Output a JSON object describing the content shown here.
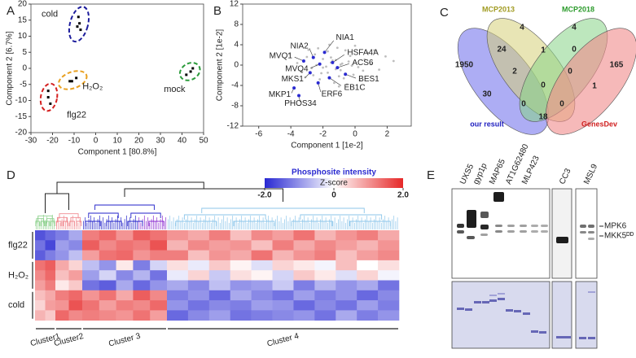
{
  "letters": [
    "A",
    "B",
    "C",
    "D",
    "E"
  ],
  "chart_data": [
    {
      "type": "scatter",
      "xlabel": "Component 1 [80.8%]",
      "ylabel": "Component 2 [6.7%]",
      "xlim": [
        -30,
        50
      ],
      "ylim": [
        -20,
        20
      ],
      "xticks": [
        -30,
        -20,
        -10,
        0,
        10,
        20,
        30,
        40,
        50
      ],
      "yticks": [
        -20,
        -15,
        -10,
        -5,
        0,
        5,
        10,
        15,
        20
      ],
      "marker_color": "#000000",
      "series": [
        {
          "name": "cold",
          "color": "#1c1c9c",
          "x": [
            -8,
            -7.5,
            -8.5,
            -7
          ],
          "values": [
            16,
            14,
            13,
            12
          ]
        },
        {
          "name": "H₂O₂",
          "color": "#e8a020",
          "x": [
            -12,
            -11,
            -9
          ],
          "values": [
            -4,
            -4,
            -3
          ]
        },
        {
          "name": "flg22",
          "color": "#d42020",
          "x": [
            -22,
            -22,
            -21
          ],
          "values": [
            -7,
            -9,
            -11
          ]
        },
        {
          "name": "mock",
          "color": "#2a9a3a",
          "x": [
            42,
            44,
            45
          ],
          "values": [
            -2,
            -1,
            0
          ]
        }
      ]
    },
    {
      "type": "scatter",
      "xlabel": "Component 1 [1e-2]",
      "ylabel": "Component 2 [1e-2]",
      "xlim": [
        -7,
        3.5
      ],
      "ylim": [
        -12,
        12
      ],
      "xticks": [
        -6,
        -4,
        -2,
        0,
        2
      ],
      "yticks": [
        -12,
        -8,
        -4,
        0,
        4,
        8,
        12
      ],
      "series": [
        {
          "color": "#bdbdbd",
          "x": [
            -1.5,
            -1.2,
            -2.0,
            -0.8,
            -1.7,
            -2.4,
            -0.3,
            -1.0,
            -1.9,
            -2.7,
            0.2,
            -0.6,
            -1.4,
            -2.2,
            -3.0,
            0.6,
            -0.1,
            -1.1,
            -1.8,
            -2.5,
            1.0,
            0.3,
            -0.9,
            -1.6,
            -3.3,
            1.5,
            -0.4,
            -2.9,
            -1.3,
            -2.1,
            0.8,
            -0.7,
            -1.5,
            -3.6,
            1.9,
            0.0,
            -1.0,
            -2.6,
            -4.1,
            2.4,
            -0.2,
            -1.2,
            -2.3,
            -3.1,
            0.5,
            -0.5,
            -1.7,
            -2.0,
            1.2,
            -0.9
          ],
          "values": [
            0.5,
            -0.8,
            1.2,
            0.3,
            -1.5,
            0.0,
            1.8,
            -2.2,
            2.5,
            -0.6,
            -0.4,
            2.9,
            0.9,
            -2.8,
            1.6,
            1.1,
            -1.9,
            3.4,
            -0.3,
            2.1,
            0.2,
            -3.0,
            -1.0,
            4.0,
            -1.3,
            -0.9,
            0.7,
            3.0,
            -3.5,
            -1.6,
            2.4,
            -2.6,
            1.5,
            0.4,
            1.7,
            3.8,
            -4.2,
            -2.0,
            2.2,
            0.8,
            -0.1,
            1.0,
            3.3,
            -2.4,
            -1.1,
            -3.8,
            2.7,
            -0.5,
            2.9,
            0.1
          ]
        },
        {
          "color": "#2a2ad0",
          "labels": [
            "NIA1",
            "NIA2",
            "MVQ1",
            "HSFA4A",
            "MVQ4",
            "ACS6",
            "MKS1",
            "BES1",
            "EB1C",
            "ERF6",
            "MKP1",
            "PHOS34"
          ],
          "x": [
            -1.9,
            -2.6,
            -3.2,
            -1.4,
            -2.2,
            -1.1,
            -2.8,
            -0.6,
            -1.6,
            -2.3,
            -3.8,
            -3.5
          ],
          "values": [
            2.5,
            1.5,
            0.8,
            0.5,
            0.2,
            -0.5,
            -1.5,
            -1.8,
            -2.5,
            -3.5,
            -4.5,
            -6
          ]
        }
      ]
    }
  ],
  "venn": {
    "sets": [
      {
        "name": "our result",
        "color": "#2020c0"
      },
      {
        "name": "MCP2013",
        "color": "#a09a20"
      },
      {
        "name": "MCP2018",
        "color": "#2a9a2a"
      },
      {
        "name": "GenesDev",
        "color": "#d02020"
      }
    ],
    "regions": [
      1950,
      24,
      4,
      4,
      1,
      0,
      165,
      2,
      0,
      0,
      30,
      1,
      0,
      0,
      18
    ]
  },
  "heatmap": {
    "title": "Phosphosite intensity",
    "zlabel": "Z-score",
    "zlim": [
      -2,
      2
    ],
    "zticks": [
      {
        "value": -2,
        "label": "-2.0"
      },
      0,
      {
        "value": 2,
        "label": "2.0"
      }
    ],
    "row_groups": [
      "flg22",
      "H₂O₂",
      "cold"
    ],
    "clusters": [
      {
        "name": "Cluster1",
        "color": "#8fd18f"
      },
      {
        "name": "Cluster2",
        "color": "#f08a90"
      },
      {
        "name": "Cluster 3",
        "color": "#2020c8"
      },
      {
        "name": "Cluster 4",
        "color": "#8cc6ea"
      }
    ],
    "values": [
      [
        -1.6,
        -1.4,
        -1.2,
        -0.8,
        1.2,
        1.4,
        1.0,
        1.5,
        1.3,
        1.0,
        0.8,
        1.2,
        0.6,
        1.1,
        0.9,
        1.3,
        0.7,
        1.0,
        1.2,
        0.8
      ],
      [
        -1.3,
        -1.7,
        -0.9,
        -1.1,
        1.5,
        1.1,
        1.3,
        1.2,
        1.6,
        0.7,
        1.1,
        0.9,
        1.0,
        0.6,
        1.2,
        0.8,
        1.1,
        0.9,
        0.7,
        1.0
      ],
      [
        -1.5,
        -1.2,
        -1.0,
        -0.6,
        0.9,
        1.3,
        1.4,
        1.0,
        1.2,
        1.2,
        0.6,
        1.0,
        0.8,
        1.3,
        0.7,
        1.0,
        1.2,
        0.6,
        0.9,
        1.1
      ],
      [
        1.3,
        1.5,
        0.8,
        0.4,
        -0.6,
        -1.0,
        0.2,
        -1.2,
        -0.4,
        0.3,
        -0.2,
        0.5,
        0.1,
        -0.3,
        0.4,
        0.2,
        -0.1,
        0.6,
        0.0,
        0.3
      ],
      [
        1.1,
        1.4,
        0.6,
        0.9,
        -0.9,
        -0.4,
        -1.1,
        -0.7,
        -1.3,
        -0.2,
        0.4,
        -0.5,
        0.3,
        0.1,
        -0.4,
        0.5,
        0.2,
        -0.3,
        0.4,
        -0.1
      ],
      [
        0.9,
        1.2,
        0.2,
        0.5,
        -1.3,
        -1.5,
        -0.8,
        -1.4,
        -1.0,
        -0.8,
        -1.1,
        -0.6,
        -1.0,
        -0.9,
        -0.5,
        -1.2,
        -0.7,
        -1.0,
        -0.8,
        -1.3
      ],
      [
        0.6,
        0.8,
        1.2,
        1.4,
        1.0,
        1.3,
        0.8,
        1.5,
        1.1,
        -1.2,
        -1.0,
        -1.4,
        -0.8,
        -1.1,
        -1.3,
        -0.9,
        -1.2,
        -1.0,
        -1.4,
        -1.1
      ],
      [
        0.4,
        0.9,
        1.0,
        1.6,
        1.3,
        0.9,
        1.2,
        1.1,
        1.4,
        -1.0,
        -1.3,
        -1.1,
        -1.2,
        -0.9,
        -1.0,
        -1.4,
        -1.1,
        -1.3,
        -0.9,
        -1.2
      ],
      [
        0.7,
        0.5,
        1.4,
        1.1,
        1.2,
        1.1,
        1.0,
        1.3,
        0.9,
        -1.4,
        -1.1,
        -0.9,
        -1.3,
        -1.2,
        -1.1,
        -1.0,
        -1.3,
        -0.8,
        -1.2,
        -1.0
      ]
    ]
  },
  "blot": {
    "lanes": [
      "UXS5",
      "gyp1p",
      "MAP65",
      "AT1G62480",
      "MLP423",
      "CC3",
      "MSL9"
    ],
    "markers": [
      "MPK6",
      "MKK5ᴰᴰ"
    ]
  }
}
